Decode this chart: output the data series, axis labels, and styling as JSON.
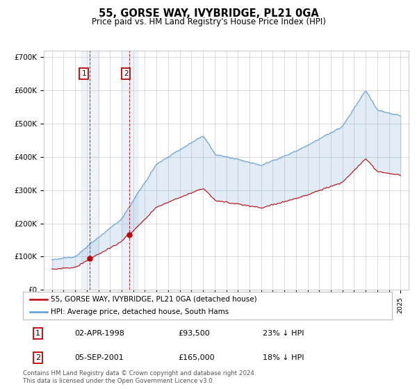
{
  "title": "55, GORSE WAY, IVYBRIDGE, PL21 0GA",
  "subtitle": "Price paid vs. HM Land Registry's House Price Index (HPI)",
  "ylim": [
    0,
    720000
  ],
  "ytick_labels": [
    "£0",
    "£100K",
    "£200K",
    "£300K",
    "£400K",
    "£500K",
    "£600K",
    "£700K"
  ],
  "ytick_values": [
    0,
    100000,
    200000,
    300000,
    400000,
    500000,
    600000,
    700000
  ],
  "background_color": "#ffffff",
  "grid_color": "#cccccc",
  "hpi_color": "#5b9bd5",
  "price_color": "#c00000",
  "purchase1_year": 1998.25,
  "purchase1_price": 93500,
  "purchase2_year": 2001.67,
  "purchase2_price": 165000,
  "legend_line1": "55, GORSE WAY, IVYBRIDGE, PL21 0GA (detached house)",
  "legend_line2": "HPI: Average price, detached house, South Hams",
  "footer": "Contains HM Land Registry data © Crown copyright and database right 2024.\nThis data is licensed under the Open Government Licence v3.0.",
  "table_row1": [
    "1",
    "02-APR-1998",
    "£93,500",
    "23% ↓ HPI"
  ],
  "table_row2": [
    "2",
    "05-SEP-2001",
    "£165,000",
    "18% ↓ HPI"
  ]
}
